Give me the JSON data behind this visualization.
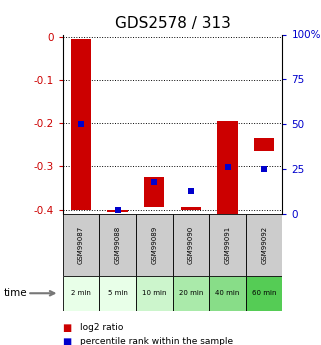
{
  "title": "GDS2578 / 313",
  "samples": [
    "GSM99087",
    "GSM99088",
    "GSM99089",
    "GSM99090",
    "GSM99091",
    "GSM99092"
  ],
  "time_labels": [
    "2 min",
    "5 min",
    "10 min",
    "20 min",
    "40 min",
    "60 min"
  ],
  "log2_bottom": [
    -0.4,
    -0.405,
    -0.395,
    -0.4,
    -0.41,
    -0.265
  ],
  "log2_top": [
    -0.005,
    -0.4,
    -0.325,
    -0.395,
    -0.195,
    -0.235
  ],
  "percentile_rank": [
    50,
    2,
    18,
    13,
    26,
    25
  ],
  "ylim_left": [
    -0.41,
    0.005
  ],
  "ylim_right": [
    0,
    100
  ],
  "yticks_left": [
    0,
    -0.1,
    -0.2,
    -0.3,
    -0.4
  ],
  "yticks_right": [
    100,
    75,
    50,
    25,
    0
  ],
  "bar_color": "#cc0000",
  "dot_color": "#0000cc",
  "title_fontsize": 11,
  "axis_label_color_left": "#cc0000",
  "axis_label_color_right": "#0000cc",
  "time_bg_colors": [
    "#e8ffe8",
    "#e8ffe8",
    "#ccf5cc",
    "#aaeaaa",
    "#88dd88",
    "#55cc55"
  ],
  "sample_bg_color": "#cccccc",
  "bar_width": 0.55
}
